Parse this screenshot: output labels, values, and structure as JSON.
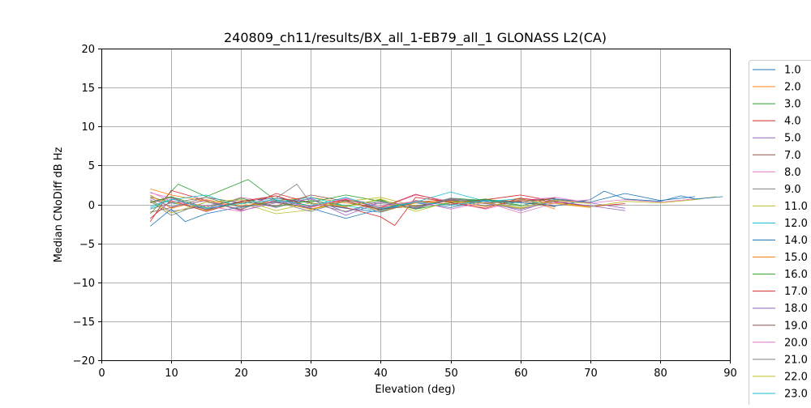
{
  "chart_data": {
    "type": "line",
    "title": "240809_ch11/results/BX_all_1-EB79_all_1 GLONASS L2(CA)",
    "xlabel": "Elevation (deg)",
    "ylabel": "Median CNoDiff dB Hz",
    "xlim": [
      0,
      90
    ],
    "ylim": [
      -20,
      20
    ],
    "xticks": [
      "0",
      "10",
      "20",
      "30",
      "40",
      "50",
      "60",
      "70",
      "80",
      "90"
    ],
    "yticks": [
      "−20",
      "−15",
      "−10",
      "−5",
      "0",
      "5",
      "10",
      "15",
      "20"
    ],
    "grid": true,
    "legend_position": "right, outside plot area (clipped)",
    "series": [
      {
        "name": "1.0",
        "color": "#1f77b4",
        "x": [
          7,
          10,
          15,
          20,
          25,
          30,
          35,
          40,
          45,
          50,
          55,
          60,
          65,
          70,
          75,
          80,
          85
        ],
        "values": [
          1.0,
          0.2,
          -0.6,
          0.4,
          0.8,
          0.2,
          -0.5,
          -1.0,
          0.3,
          0.6,
          0.2,
          0.5,
          0.7,
          0.3,
          1.4,
          0.5,
          1.0
        ]
      },
      {
        "name": "2.0",
        "color": "#ff7f0e",
        "x": [
          7,
          10,
          15,
          20,
          25,
          30,
          35,
          40,
          45,
          50,
          55,
          60,
          65
        ],
        "values": [
          2.0,
          1.2,
          0.4,
          -0.3,
          0.5,
          0.9,
          0.2,
          -0.4,
          0.3,
          0.6,
          0.1,
          0.8,
          -0.6
        ]
      },
      {
        "name": "3.0",
        "color": "#2ca02c",
        "x": [
          7,
          11,
          15,
          21,
          25,
          30,
          35,
          40,
          45,
          50,
          55,
          60,
          65
        ],
        "values": [
          -1.2,
          2.6,
          1.0,
          3.2,
          0.5,
          0.3,
          1.2,
          0.4,
          -0.6,
          0.8,
          0.5,
          -0.2,
          0.9
        ]
      },
      {
        "name": "4.0",
        "color": "#d62728",
        "x": [
          7,
          10,
          15,
          20,
          25,
          30,
          35,
          40,
          42,
          45,
          50,
          55,
          60,
          65,
          70,
          75
        ],
        "values": [
          -2.2,
          1.8,
          0.5,
          -0.7,
          1.4,
          0.2,
          -0.4,
          -1.6,
          -2.7,
          0.9,
          0.3,
          0.6,
          1.2,
          0.4,
          -0.3,
          0.1
        ]
      },
      {
        "name": "5.0",
        "color": "#9467bd",
        "x": [
          7,
          10,
          15,
          20,
          25,
          30,
          35,
          40,
          45,
          50,
          55,
          60,
          65,
          70,
          75
        ],
        "values": [
          0.6,
          -0.9,
          -0.2,
          0.6,
          -0.4,
          0.8,
          -1.0,
          0.3,
          -0.5,
          0.7,
          0.4,
          -0.8,
          0.6,
          0.2,
          -0.5
        ]
      },
      {
        "name": "7.0",
        "color": "#8c564b",
        "x": [
          7,
          10,
          15,
          20,
          25,
          30,
          35,
          40,
          45,
          50,
          55,
          60,
          65
        ],
        "values": [
          -1.0,
          -0.4,
          0.9,
          0.2,
          1.1,
          -0.6,
          0.4,
          -0.7,
          0.5,
          0.0,
          0.6,
          0.3,
          0.8
        ]
      },
      {
        "name": "8.0",
        "color": "#e377c2",
        "x": [
          7,
          10,
          15,
          20,
          25,
          30,
          35,
          40,
          45,
          50,
          55,
          60,
          65,
          70,
          75,
          80,
          85
        ],
        "values": [
          1.5,
          0.8,
          -0.6,
          0.9,
          0.2,
          -0.3,
          0.7,
          -0.5,
          1.2,
          0.4,
          -0.6,
          0.5,
          0.9,
          0.2,
          0.6,
          0.3,
          0.7
        ]
      },
      {
        "name": "9.0",
        "color": "#7f7f7f",
        "x": [
          7,
          10,
          15,
          20,
          25,
          28,
          30,
          35,
          40,
          45,
          50,
          55,
          60,
          65,
          70
        ],
        "values": [
          0.4,
          -1.4,
          0.3,
          -0.6,
          0.8,
          2.6,
          0.1,
          -0.9,
          0.5,
          -0.3,
          0.8,
          0.2,
          -0.4,
          0.6,
          0.3
        ]
      },
      {
        "name": "11.0",
        "color": "#bcbd22",
        "x": [
          7,
          10,
          15,
          20,
          25,
          30,
          35,
          40,
          45,
          50,
          55,
          60,
          65,
          70,
          75,
          80,
          85,
          88
        ],
        "values": [
          0.9,
          0.3,
          -0.8,
          0.2,
          -1.2,
          -0.7,
          0.4,
          0.9,
          -0.2,
          0.5,
          0.1,
          -0.5,
          0.2,
          -0.3,
          0.4,
          0.2,
          0.6,
          1.0
        ]
      },
      {
        "name": "12.0",
        "color": "#17becf",
        "x": [
          7,
          10,
          15,
          20,
          25,
          30,
          35,
          40,
          45,
          50,
          55,
          60,
          65
        ],
        "values": [
          -0.5,
          0.6,
          1.2,
          -0.4,
          0.3,
          0.9,
          -0.2,
          -0.8,
          0.3,
          1.6,
          0.4,
          0.7,
          -0.3
        ]
      },
      {
        "name": "14.0",
        "color": "#1f77b4",
        "x": [
          7,
          10,
          12,
          15,
          20,
          25,
          30,
          35,
          40,
          45,
          50,
          55,
          60,
          65,
          70,
          72,
          75,
          80,
          83,
          85,
          89
        ],
        "values": [
          -2.8,
          -0.6,
          -2.2,
          -1.2,
          -0.3,
          0.4,
          -0.5,
          -1.8,
          -0.6,
          0.2,
          -0.4,
          0.5,
          0.2,
          -0.2,
          0.6,
          1.7,
          0.7,
          0.4,
          1.1,
          0.7,
          1.0
        ]
      },
      {
        "name": "15.0",
        "color": "#ff7f0e",
        "x": [
          7,
          10,
          15,
          20,
          25,
          30,
          35,
          40,
          45,
          50,
          55,
          60,
          65,
          70
        ],
        "values": [
          1.2,
          -0.5,
          0.6,
          -0.2,
          0.3,
          -0.6,
          0.5,
          -0.9,
          0.2,
          0.4,
          -0.3,
          0.6,
          0.1,
          -0.4
        ]
      },
      {
        "name": "16.0",
        "color": "#2ca02c",
        "x": [
          7,
          10,
          15,
          20,
          25,
          30,
          35,
          40,
          45,
          50,
          55,
          60
        ],
        "values": [
          0.3,
          1.0,
          -0.4,
          0.8,
          -0.3,
          0.5,
          -0.2,
          0.6,
          -0.6,
          0.2,
          0.7,
          -0.1
        ]
      },
      {
        "name": "17.0",
        "color": "#d62728",
        "x": [
          7,
          10,
          15,
          20,
          25,
          30,
          35,
          40,
          45,
          50,
          55,
          60,
          65,
          70
        ],
        "values": [
          -1.8,
          0.5,
          -0.9,
          0.4,
          1.1,
          -0.3,
          0.6,
          -0.4,
          1.3,
          0.2,
          -0.5,
          0.8,
          0.3,
          -0.2
        ]
      },
      {
        "name": "18.0",
        "color": "#9467bd",
        "x": [
          7,
          10,
          15,
          20,
          25,
          30,
          35,
          40,
          45,
          50,
          55,
          60,
          65,
          70,
          75
        ],
        "values": [
          0.8,
          -0.3,
          0.5,
          -0.8,
          0.2,
          0.7,
          -1.4,
          0.3,
          -0.5,
          0.6,
          0.1,
          -0.6,
          0.4,
          -0.2,
          -0.8
        ]
      },
      {
        "name": "19.0",
        "color": "#8c564b",
        "x": [
          7,
          10,
          15,
          20,
          25,
          30,
          35,
          40,
          45,
          50,
          55,
          60,
          65
        ],
        "values": [
          0.2,
          0.9,
          -0.7,
          0.3,
          -0.2,
          1.2,
          0.4,
          -0.6,
          -0.2,
          0.5,
          0.2,
          0.4,
          -0.3
        ]
      },
      {
        "name": "20.0",
        "color": "#e377c2",
        "x": [
          7,
          10,
          15,
          20,
          25,
          30,
          35,
          40,
          45,
          50,
          55,
          60,
          65,
          70
        ],
        "values": [
          1.6,
          0.4,
          -0.2,
          -0.9,
          0.6,
          -0.4,
          0.8,
          -0.2,
          0.4,
          -0.6,
          0.3,
          -1.1,
          0.2,
          0.6
        ]
      },
      {
        "name": "21.0",
        "color": "#7f7f7f",
        "x": [
          7,
          10,
          15,
          20,
          25,
          30,
          35,
          40,
          45,
          50,
          55,
          60
        ],
        "values": [
          -0.6,
          0.2,
          0.9,
          -0.4,
          0.3,
          -0.9,
          0.5,
          0.1,
          -0.4,
          0.7,
          -0.2,
          0.3
        ]
      },
      {
        "name": "22.0",
        "color": "#bcbd22",
        "x": [
          7,
          10,
          15,
          20,
          25,
          30,
          35,
          40,
          45,
          50,
          55,
          60,
          65,
          70
        ],
        "values": [
          0.5,
          -1.1,
          0.3,
          0.6,
          -0.8,
          0.2,
          -0.3,
          0.7,
          -0.9,
          0.4,
          0.2,
          -0.4,
          0.5,
          0.1
        ]
      },
      {
        "name": "23.0",
        "color": "#17becf",
        "x": [
          7,
          10,
          15,
          20,
          25,
          30,
          35,
          40,
          45,
          50,
          55,
          60
        ],
        "values": [
          -0.3,
          0.7,
          -0.5,
          0.1,
          0.6,
          -0.2,
          0.9,
          -0.5,
          0.3,
          -0.1,
          0.5,
          0.2
        ]
      }
    ]
  }
}
